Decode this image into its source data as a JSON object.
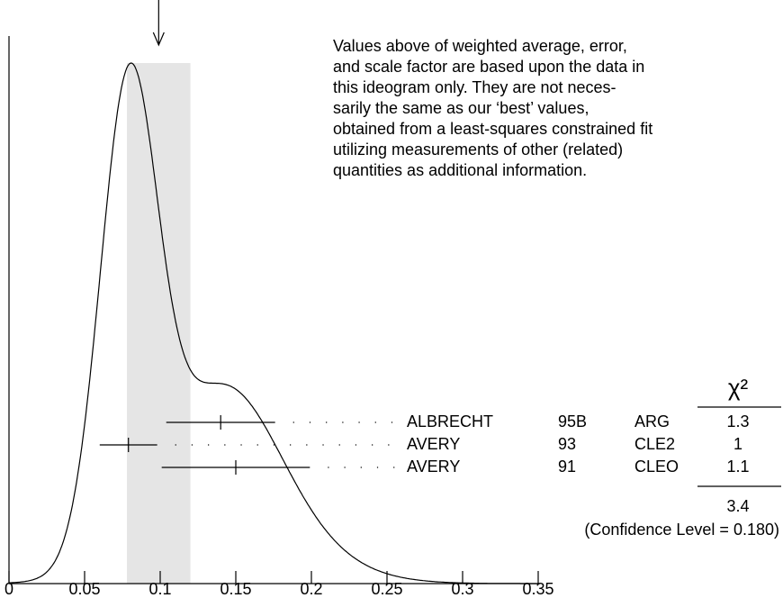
{
  "chart_data": {
    "type": "ideogram",
    "xlim": [
      0,
      0.35
    ],
    "xticks": [
      0,
      0.05,
      0.1,
      0.15,
      0.2,
      0.25,
      0.3,
      0.35
    ],
    "weighted_average": {
      "value": 0.099,
      "error": 0.021
    },
    "note": [
      "Values above of weighted average, error,",
      "and scale factor are based upon the data in",
      "this ideogram only.  They are not neces-",
      "sarily the same as our ‘best’ values,",
      "obtained from a least-squares constrained fit",
      "utilizing measurements of other (related)",
      "quantities as additional information."
    ],
    "chi2_header": "χ²",
    "measurements": [
      {
        "name": "ALBRECHT",
        "year": "95B",
        "technique": "ARG",
        "value": 0.14,
        "error": 0.036,
        "chi2": 1.3
      },
      {
        "name": "AVERY",
        "year": "93",
        "technique": "CLE2",
        "value": 0.079,
        "error": 0.019,
        "chi2": 1.0
      },
      {
        "name": "AVERY",
        "year": "91",
        "technique": "CLEO",
        "value": 0.15,
        "error": 0.049,
        "chi2": 1.1
      }
    ],
    "chi2_total": 3.4,
    "confidence_level_label": "(Confidence Level = 0.180)"
  }
}
